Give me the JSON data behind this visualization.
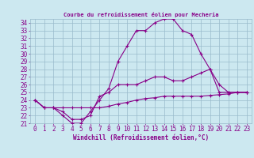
{
  "title": "Courbe du refroidissement éolien pour Mecheria",
  "xlabel": "Windchill (Refroidissement éolien,°C)",
  "bg_color": "#cce8f0",
  "line_color": "#880088",
  "grid_color": "#99bbcc",
  "xlim": [
    -0.5,
    23.5
  ],
  "ylim": [
    21,
    34.5
  ],
  "xticks": [
    0,
    1,
    2,
    3,
    4,
    5,
    6,
    7,
    8,
    9,
    10,
    11,
    12,
    13,
    14,
    15,
    16,
    17,
    18,
    19,
    20,
    21,
    22,
    23
  ],
  "yticks": [
    21,
    22,
    23,
    24,
    25,
    26,
    27,
    28,
    29,
    30,
    31,
    32,
    33,
    34
  ],
  "series": [
    [
      24.0,
      23.0,
      23.0,
      22.0,
      21.0,
      21.0,
      22.5,
      24.0,
      25.5,
      29.0,
      31.0,
      33.0,
      33.0,
      34.0,
      34.5,
      34.5,
      33.0,
      32.5,
      30.0,
      28.0,
      25.0,
      25.0,
      25.0,
      25.0
    ],
    [
      24.0,
      23.0,
      23.0,
      22.5,
      21.5,
      21.5,
      22.0,
      24.5,
      25.0,
      26.0,
      26.0,
      26.0,
      26.5,
      27.0,
      27.0,
      26.5,
      26.5,
      27.0,
      27.5,
      28.0,
      26.0,
      25.0,
      25.0,
      25.0
    ],
    [
      24.0,
      23.0,
      23.0,
      23.0,
      23.0,
      23.0,
      23.0,
      23.0,
      23.2,
      23.5,
      23.7,
      24.0,
      24.2,
      24.3,
      24.5,
      24.5,
      24.5,
      24.5,
      24.5,
      24.6,
      24.7,
      24.8,
      25.0,
      25.0
    ]
  ],
  "tick_fontsize": 5.5,
  "xlabel_fontsize": 5.5
}
